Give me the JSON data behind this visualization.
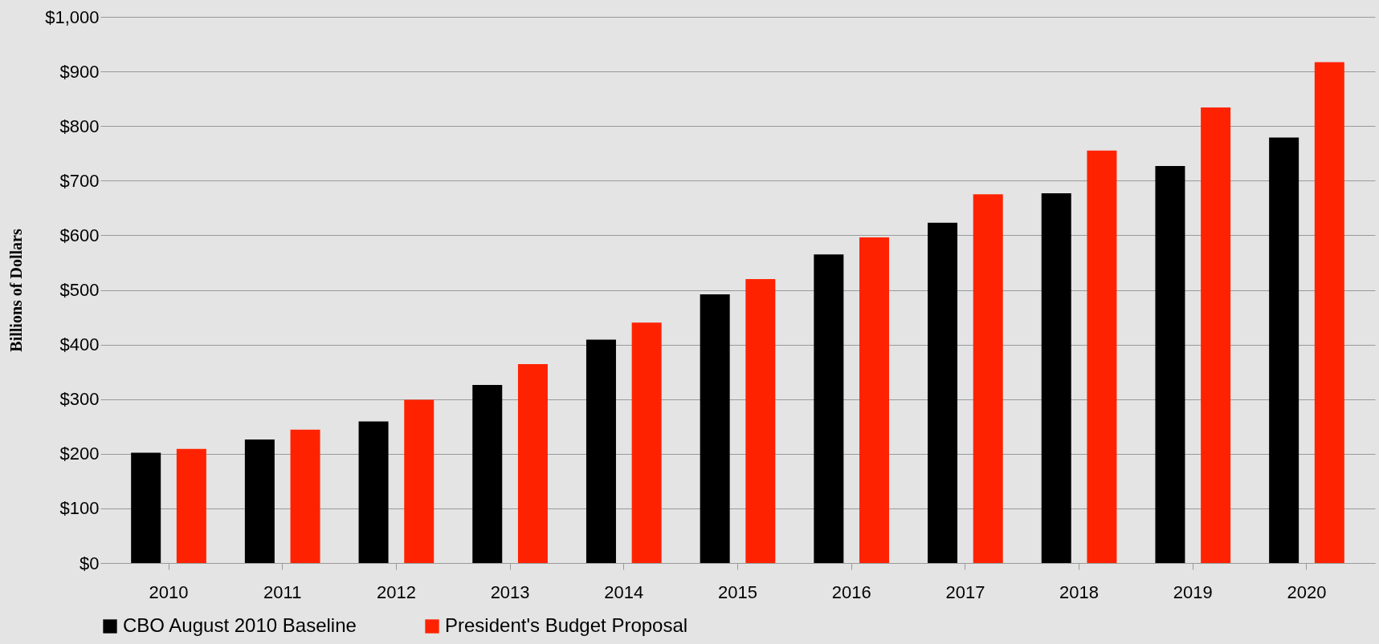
{
  "chart_data": {
    "type": "bar",
    "ylabel": "Billions of Dollars",
    "categories": [
      "2010",
      "2011",
      "2012",
      "2013",
      "2014",
      "2015",
      "2016",
      "2017",
      "2018",
      "2019",
      "2020"
    ],
    "series": [
      {
        "name": "CBO August 2010 Baseline",
        "color": "#000000",
        "values": [
          202,
          226,
          259,
          326,
          409,
          492,
          565,
          623,
          677,
          727,
          779
        ]
      },
      {
        "name": "President's Budget Proposal",
        "color": "#ff2200",
        "values": [
          209,
          244,
          299,
          364,
          440,
          520,
          596,
          675,
          755,
          834,
          917
        ]
      }
    ],
    "ylim": [
      0,
      1000
    ],
    "yticks": [
      {
        "value": 0,
        "label": "$0"
      },
      {
        "value": 100,
        "label": "$100"
      },
      {
        "value": 200,
        "label": "$200"
      },
      {
        "value": 300,
        "label": "$300"
      },
      {
        "value": 400,
        "label": "$400"
      },
      {
        "value": 500,
        "label": "$500"
      },
      {
        "value": 600,
        "label": "$600"
      },
      {
        "value": 700,
        "label": "$700"
      },
      {
        "value": 800,
        "label": "$800"
      },
      {
        "value": 900,
        "label": "$900"
      },
      {
        "value": 1000,
        "label": "$1,000"
      }
    ],
    "grid": "y",
    "legend": "bottom"
  }
}
